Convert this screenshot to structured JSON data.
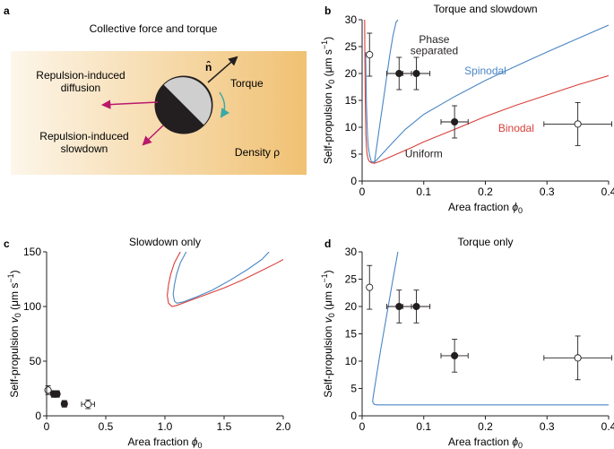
{
  "panel_a": {
    "label": "a",
    "title": "Collective force and torque",
    "n_symbol": "n̂",
    "torque": "Torque",
    "diffusion_line1": "Repulsion-induced",
    "diffusion_line2": "diffusion",
    "slowdown_line1": "Repulsion-induced",
    "slowdown_line2": "slowdown",
    "density_label": "Density ρ",
    "colors": {
      "gradient_light": "#fdf6ea",
      "gradient_dark": "#f0c173",
      "diffusion_arrow": "#b8196b",
      "slowdown_arrow": "#b8196b",
      "torque_arrow": "#3aa9a5"
    }
  },
  "chart_data": [
    {
      "panel": "b",
      "type": "line",
      "title": "Torque and slowdown",
      "xlabel_main": "Area fraction ",
      "xlabel_sym": "ϕ",
      "xlabel_sub": "0",
      "ylabel_main": "Self-propulsion ",
      "ylabel_sym": "v",
      "ylabel_sub": "0",
      "ylabel_unit": " (μm s",
      "ylabel_sup": "−1",
      "ylabel_close": ")",
      "xlim": [
        0,
        0.4
      ],
      "ylim": [
        0,
        30
      ],
      "xticks": [
        "0",
        "0.1",
        "0.2",
        "0.3",
        "0.4"
      ],
      "yticks": [
        "0",
        "5",
        "10",
        "15",
        "20",
        "25",
        "30"
      ],
      "annotations": [
        {
          "text": "Phase",
          "x": 0.117,
          "y": 25.7,
          "color": "#231f20"
        },
        {
          "text": "separated",
          "x": 0.117,
          "y": 23.6,
          "color": "#231f20"
        },
        {
          "text": "Spinodal",
          "x": 0.2,
          "y": 19.8,
          "color": "#4a86c5"
        },
        {
          "text": "Binodal",
          "x": 0.25,
          "y": 9.2,
          "color": "#d8403a"
        },
        {
          "text": "Uniform",
          "x": 0.1,
          "y": 4.4,
          "color": "#231f20"
        }
      ],
      "series": [
        {
          "name": "Spinodal",
          "color": "#4a86c5",
          "x": [
            0.0056,
            0.007,
            0.008,
            0.009,
            0.01,
            0.012,
            0.015,
            0.02,
            0.03,
            0.05,
            0.07,
            0.1,
            0.15,
            0.2,
            0.25,
            0.3,
            0.35,
            0.4
          ],
          "y": [
            24.0,
            14.4,
            10.6,
            7.9,
            6.4,
            4.8,
            3.6,
            3.5,
            4.7,
            7.2,
            9.6,
            12.4,
            15.7,
            18.7,
            21.4,
            24.0,
            26.5,
            29.0
          ]
        },
        {
          "name": "Spinodal",
          "color": "#4a86c5",
          "x": [
            0.02,
            0.025,
            0.03,
            0.035,
            0.04,
            0.045,
            0.05,
            0.055,
            0.058
          ],
          "y": [
            3.5,
            7.5,
            11.5,
            15.5,
            19.5,
            23.5,
            27.0,
            29.5,
            30.0
          ]
        },
        {
          "name": "Binodal",
          "color": "#d8403a",
          "x": [
            0.004,
            0.0045,
            0.005,
            0.0055,
            0.006,
            0.007,
            0.008,
            0.01,
            0.012,
            0.015,
            0.02,
            0.03,
            0.05,
            0.08,
            0.1,
            0.15,
            0.2,
            0.25,
            0.3,
            0.35,
            0.4
          ],
          "y": [
            30.0,
            23.0,
            16.5,
            12.0,
            9.0,
            6.5,
            5.0,
            4.0,
            3.6,
            3.4,
            3.3,
            3.7,
            4.7,
            6.2,
            7.3,
            9.6,
            12.0,
            14.1,
            16.0,
            17.9,
            19.6
          ]
        }
      ],
      "points": [
        {
          "x": 0.012,
          "y": 23.5,
          "xerr": 0,
          "yerr": 4,
          "filled": false
        },
        {
          "x": 0.06,
          "y": 20,
          "xerr": 0.02,
          "yerr": 3,
          "filled": true
        },
        {
          "x": 0.088,
          "y": 20,
          "xerr": 0.022,
          "yerr": 3,
          "filled": true
        },
        {
          "x": 0.15,
          "y": 11,
          "xerr": 0.022,
          "yerr": 3,
          "filled": true
        },
        {
          "x": 0.35,
          "y": 10.6,
          "xerr": 0.055,
          "yerr": 4,
          "filled": false
        }
      ]
    },
    {
      "panel": "c",
      "type": "line",
      "title": "Slowdown only",
      "xlabel_main": "Area fraction ",
      "xlabel_sym": "ϕ",
      "xlabel_sub": "0",
      "ylabel_main": "Self-propulsion ",
      "ylabel_sym": "v",
      "ylabel_sub": "0",
      "ylabel_unit": " (μm s",
      "ylabel_sup": "−1",
      "ylabel_close": ")",
      "xlim": [
        0,
        2.0
      ],
      "ylim": [
        0,
        150
      ],
      "xticks": [
        "0",
        "0.5",
        "1.0",
        "1.5",
        "2.0"
      ],
      "yticks": [
        "0",
        "50",
        "100",
        "150"
      ],
      "annotations": [],
      "series": [
        {
          "name": "Binodal",
          "color": "#d8403a",
          "x": [
            1.13,
            1.08,
            1.05,
            1.03,
            1.02,
            1.03,
            1.06,
            1.1,
            1.2,
            1.35,
            1.5,
            1.65,
            1.8,
            1.95,
            2.0
          ],
          "y": [
            150,
            140,
            130,
            120,
            110,
            103,
            100,
            101,
            105,
            111,
            117,
            124,
            132,
            140,
            143
          ]
        },
        {
          "name": "Spinodal",
          "color": "#4a86c5",
          "x": [
            1.18,
            1.13,
            1.1,
            1.08,
            1.07,
            1.08,
            1.1,
            1.15,
            1.25,
            1.4,
            1.55,
            1.7,
            1.82,
            1.88
          ],
          "y": [
            150,
            140,
            130,
            120,
            111,
            105,
            103,
            104,
            108,
            115,
            124,
            134,
            143,
            150
          ]
        }
      ],
      "points": [
        {
          "x": 0.012,
          "y": 23.5,
          "xerr": 0,
          "yerr": 4,
          "filled": false
        },
        {
          "x": 0.06,
          "y": 20,
          "xerr": 0.02,
          "yerr": 3,
          "filled": true
        },
        {
          "x": 0.088,
          "y": 20,
          "xerr": 0.022,
          "yerr": 3,
          "filled": true
        },
        {
          "x": 0.15,
          "y": 11,
          "xerr": 0.022,
          "yerr": 3,
          "filled": true
        },
        {
          "x": 0.35,
          "y": 10.6,
          "xerr": 0.055,
          "yerr": 4,
          "filled": false
        }
      ]
    },
    {
      "panel": "d",
      "type": "line",
      "title": "Torque only",
      "xlabel_main": "Area fraction ",
      "xlabel_sym": "ϕ",
      "xlabel_sub": "0",
      "ylabel_main": "Self-propulsion ",
      "ylabel_sym": "v",
      "ylabel_sub": "0",
      "ylabel_unit": " (μm s",
      "ylabel_sup": "−1",
      "ylabel_close": ")",
      "xlim": [
        0,
        0.4
      ],
      "ylim": [
        0,
        30
      ],
      "xticks": [
        "0",
        "0.1",
        "0.2",
        "0.3",
        "0.4"
      ],
      "yticks": [
        "0",
        "5",
        "10",
        "15",
        "20",
        "25",
        "30"
      ],
      "annotations": [],
      "series": [
        {
          "name": "Spinodal",
          "color": "#4a86c5",
          "x": [
            0.058,
            0.05,
            0.04,
            0.03,
            0.025,
            0.02,
            0.018,
            0.017,
            0.018,
            0.02,
            0.025,
            0.03,
            0.05,
            0.1,
            0.2,
            0.3,
            0.4
          ],
          "y": [
            30,
            25,
            18.5,
            12,
            8.5,
            5,
            3.5,
            2.7,
            2.3,
            2.1,
            2.0,
            2.0,
            2.0,
            2.0,
            2.0,
            2.0,
            2.0
          ]
        }
      ],
      "points": [
        {
          "x": 0.012,
          "y": 23.5,
          "xerr": 0,
          "yerr": 4,
          "filled": false
        },
        {
          "x": 0.06,
          "y": 20,
          "xerr": 0.02,
          "yerr": 3,
          "filled": true
        },
        {
          "x": 0.088,
          "y": 20,
          "xerr": 0.022,
          "yerr": 3,
          "filled": true
        },
        {
          "x": 0.15,
          "y": 11,
          "xerr": 0.022,
          "yerr": 3,
          "filled": true
        },
        {
          "x": 0.35,
          "y": 10.6,
          "xerr": 0.055,
          "yerr": 4,
          "filled": false
        }
      ]
    }
  ]
}
